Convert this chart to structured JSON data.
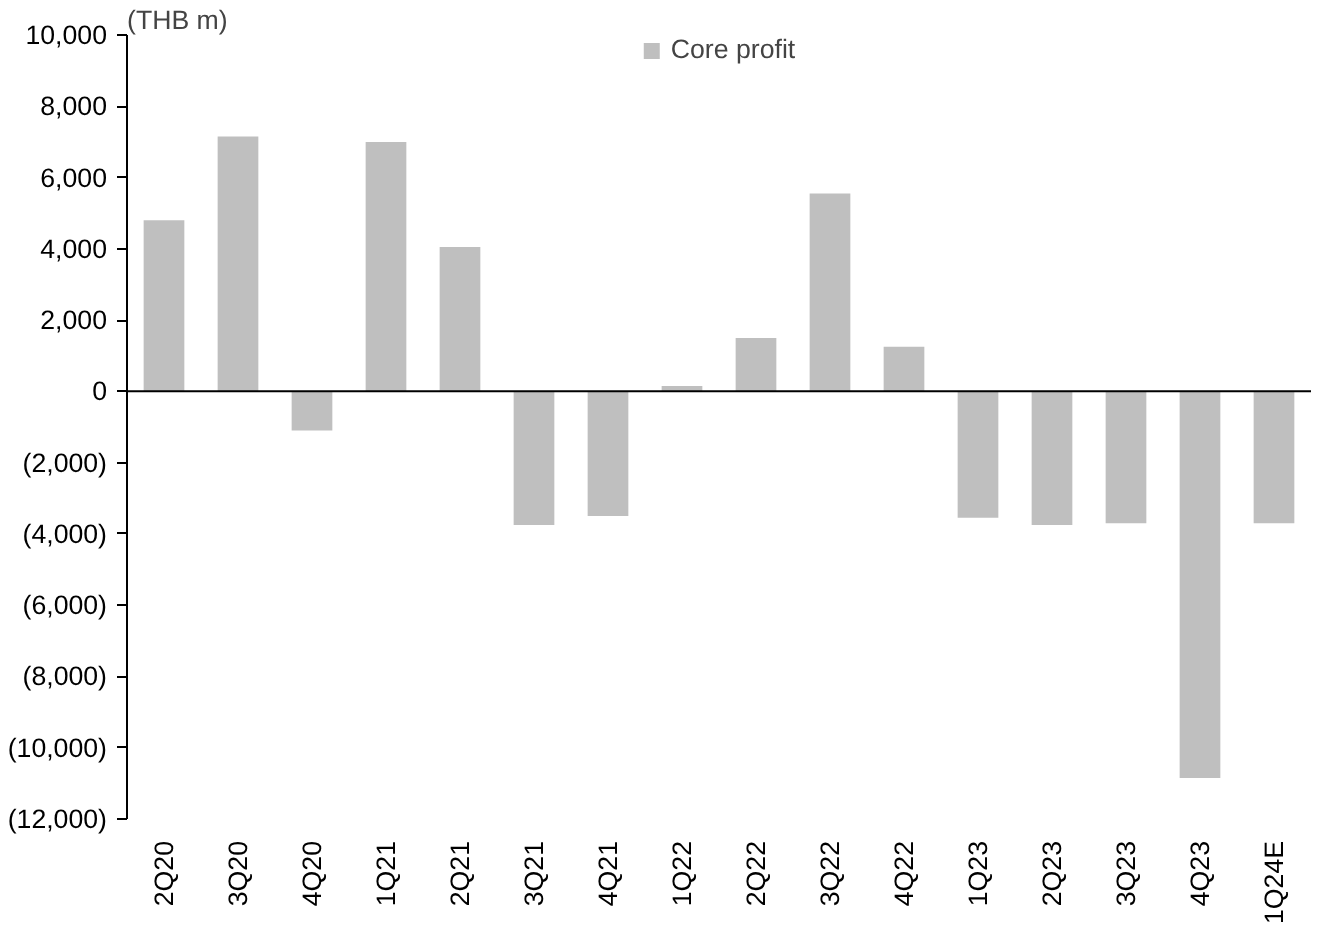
{
  "chart_data": {
    "type": "bar",
    "ylabel": "(THB m)",
    "categories": [
      "2Q20",
      "3Q20",
      "4Q20",
      "1Q21",
      "2Q21",
      "3Q21",
      "4Q21",
      "1Q22",
      "2Q22",
      "3Q22",
      "4Q22",
      "1Q23",
      "2Q23",
      "3Q23",
      "4Q23",
      "1Q24E"
    ],
    "series": [
      {
        "name": "Core profit",
        "color": "#bfbfbf",
        "values": [
          4800,
          7150,
          -1100,
          7000,
          4050,
          -3750,
          -3500,
          150,
          1500,
          5550,
          1250,
          -3550,
          -3750,
          -3700,
          -10850,
          -3700
        ]
      }
    ],
    "ylim": [
      -12000,
      10000
    ],
    "yticks": [
      {
        "value": -12000,
        "label": "(12,000)"
      },
      {
        "value": -10000,
        "label": "(10,000)"
      },
      {
        "value": -8000,
        "label": "(8,000)"
      },
      {
        "value": -6000,
        "label": "(6,000)"
      },
      {
        "value": -4000,
        "label": "(4,000)"
      },
      {
        "value": -2000,
        "label": "(2,000)"
      },
      0,
      {
        "value": 2000,
        "label": "2,000"
      },
      {
        "value": 4000,
        "label": "4,000"
      },
      {
        "value": 6000,
        "label": "6,000"
      },
      {
        "value": 8000,
        "label": "8,000"
      },
      {
        "value": 10000,
        "label": "10,000"
      }
    ],
    "legend": "top"
  }
}
